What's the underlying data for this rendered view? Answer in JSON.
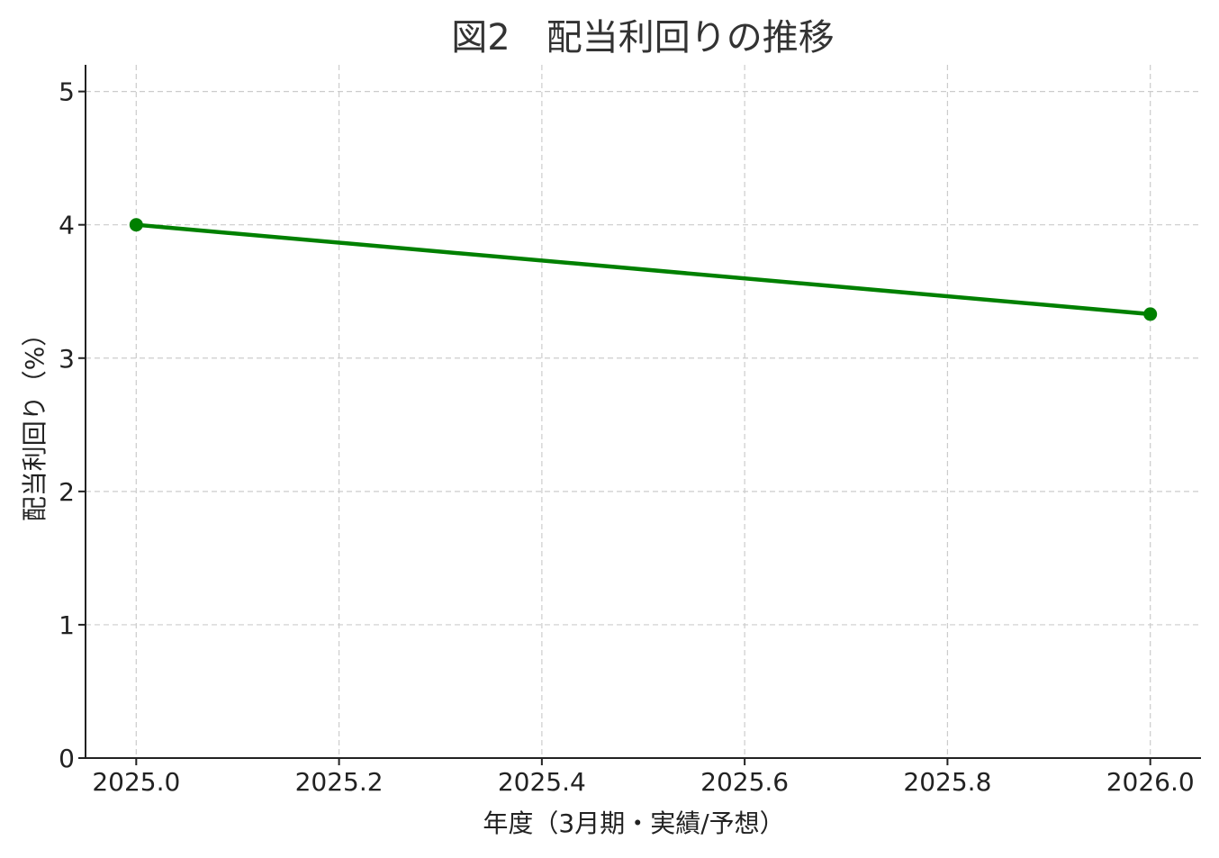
{
  "chart_data": {
    "type": "line",
    "title": "図2　配当利回りの推移",
    "xlabel": "年度（3月期・実績/予想）",
    "ylabel": "配当利回り（%）",
    "x": [
      2025.0,
      2026.0
    ],
    "series": [
      {
        "values": [
          4.0,
          3.33
        ],
        "color": "#008000"
      }
    ],
    "xlim": [
      2024.95,
      2026.05
    ],
    "ylim": [
      0,
      5.2
    ],
    "xticks": [
      2025.0,
      2025.2,
      2025.4,
      2025.6,
      2025.8,
      2026.0
    ],
    "xtick_labels": [
      "2025.0",
      "2025.2",
      "2025.4",
      "2025.6",
      "2025.8",
      "2026.0"
    ],
    "yticks": [
      0,
      1,
      2,
      3,
      4,
      5
    ],
    "ytick_labels": [
      "0",
      "1",
      "2",
      "3",
      "4",
      "5"
    ],
    "grid": true,
    "grid_color": "#cccccc",
    "axis_color": "#222222"
  }
}
